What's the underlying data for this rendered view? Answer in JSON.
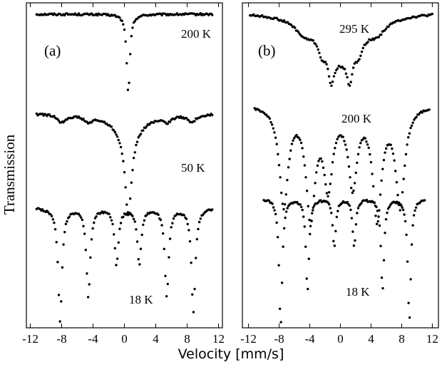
{
  "figure": {
    "xlabel": "Velocity [mm/s]",
    "ylabel": "Transmission"
  },
  "chart_data": [
    {
      "type": "scatter",
      "panel_label": "(a)",
      "xlim": [
        -12.5,
        12.5
      ],
      "xticks": [
        -12,
        -8,
        -4,
        0,
        4,
        8,
        12
      ],
      "xtick_labels": [
        "-12",
        "-8",
        "-4",
        "0",
        "4",
        "8",
        "12"
      ],
      "series": [
        {
          "temperature": "200 K",
          "ybase": 0.965,
          "depth_min": 0.72,
          "x_range": [
            -11.2,
            11.2
          ],
          "lines": [
            {
              "center": 0.5,
              "width": 0.25,
              "depth": 1.0
            }
          ]
        },
        {
          "temperature": "50 K",
          "ybase": 0.66,
          "depth_min": 0.345,
          "x_range": [
            -11.2,
            11.2
          ],
          "lines": [
            {
              "center": 0.5,
              "width": 0.5,
              "depth": 1.0
            },
            {
              "center": 0.5,
              "width": 2.2,
              "depth": 0.22
            },
            {
              "center": -8.0,
              "width": 0.6,
              "depth": 0.09
            },
            {
              "center": -4.6,
              "width": 0.6,
              "depth": 0.07
            },
            {
              "center": 5.4,
              "width": 0.6,
              "depth": 0.07
            },
            {
              "center": 8.6,
              "width": 0.6,
              "depth": 0.09
            }
          ]
        },
        {
          "temperature": "18 K",
          "ybase": 0.37,
          "depth_min": 0.02,
          "x_range": [
            -11.2,
            11.2
          ],
          "lines": [
            {
              "center": -8.2,
              "width": 0.3,
              "depth": 1.0
            },
            {
              "center": -4.6,
              "width": 0.3,
              "depth": 0.78
            },
            {
              "center": -1.0,
              "width": 0.3,
              "depth": 0.5
            },
            {
              "center": 1.9,
              "width": 0.3,
              "depth": 0.5
            },
            {
              "center": 5.4,
              "width": 0.3,
              "depth": 0.78
            },
            {
              "center": 8.8,
              "width": 0.3,
              "depth": 0.92
            }
          ]
        }
      ]
    },
    {
      "type": "scatter",
      "panel_label": "(b)",
      "xlim": [
        -12.8,
        12.8
      ],
      "xticks": [
        -12,
        -8,
        -4,
        0,
        4,
        8,
        12
      ],
      "xtick_labels": [
        "-12",
        "-8",
        "-4",
        "0",
        "4",
        "8",
        "12"
      ],
      "series": [
        {
          "temperature": "295 K",
          "ybase": 0.975,
          "depth_min": 0.745,
          "x_range": [
            -11.8,
            12.0
          ],
          "lines": [
            {
              "center": 0.0,
              "width": 3.4,
              "depth": 0.55
            },
            {
              "center": -4.8,
              "width": 1.2,
              "depth": 0.12
            },
            {
              "center": 4.8,
              "width": 1.2,
              "depth": 0.12
            },
            {
              "center": -1.2,
              "width": 0.45,
              "depth": 0.35
            },
            {
              "center": 1.2,
              "width": 0.45,
              "depth": 0.35
            },
            {
              "center": -2.4,
              "width": 0.5,
              "depth": 0.15
            },
            {
              "center": 2.4,
              "width": 0.5,
              "depth": 0.15
            }
          ]
        },
        {
          "temperature": "200 K",
          "ybase": 0.69,
          "depth_min": 0.315,
          "x_range": [
            -11.2,
            11.6
          ],
          "lines": [
            {
              "center": -7.4,
              "width": 0.7,
              "depth": 0.9
            },
            {
              "center": -3.9,
              "width": 0.7,
              "depth": 1.0
            },
            {
              "center": -1.6,
              "width": 0.7,
              "depth": 0.7
            },
            {
              "center": 1.6,
              "width": 0.7,
              "depth": 0.7
            },
            {
              "center": 4.8,
              "width": 0.7,
              "depth": 1.0
            },
            {
              "center": 7.8,
              "width": 0.7,
              "depth": 0.9
            }
          ]
        },
        {
          "temperature": "18 K",
          "ybase": 0.4,
          "depth_min": 0.005,
          "x_range": [
            -10.0,
            11.0
          ],
          "lines": [
            {
              "center": -7.8,
              "width": 0.25,
              "depth": 1.0
            },
            {
              "center": -4.3,
              "width": 0.25,
              "depth": 0.72
            },
            {
              "center": -0.8,
              "width": 0.25,
              "depth": 0.38
            },
            {
              "center": 1.8,
              "width": 0.25,
              "depth": 0.38
            },
            {
              "center": 5.5,
              "width": 0.25,
              "depth": 0.72
            },
            {
              "center": 9.0,
              "width": 0.25,
              "depth": 0.95
            }
          ]
        }
      ]
    }
  ]
}
